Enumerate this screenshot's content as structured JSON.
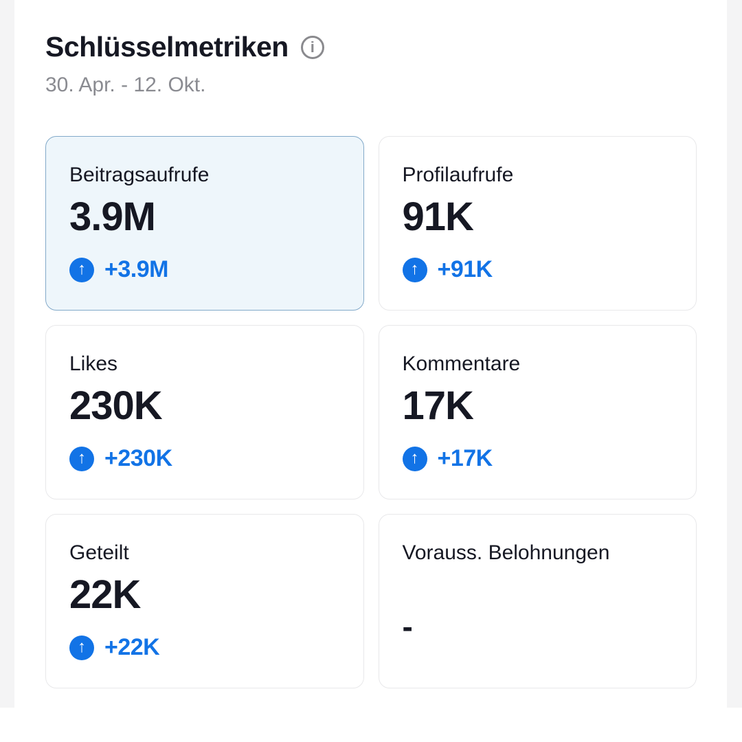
{
  "header": {
    "title": "Schlüsselmetriken",
    "info_icon": "info-circle-icon",
    "date_range": "30. Apr. - 12. Okt."
  },
  "colors": {
    "accent_blue": "#1273E6",
    "text_primary": "#161823",
    "text_secondary": "#8A8B91",
    "card_border": "#E8E8EA",
    "selected_card_bg": "#EEF6FB",
    "selected_card_border": "#82A9C9",
    "side_strip_gray": "#F4F4F5"
  },
  "icons": {
    "up_arrow": "↑",
    "info_letter": "i"
  },
  "metrics": [
    {
      "label": "Beitragsaufrufe",
      "value": "3.9M",
      "change": "+3.9M",
      "selected": true
    },
    {
      "label": "Profilaufrufe",
      "value": "91K",
      "change": "+91K",
      "selected": false
    },
    {
      "label": "Likes",
      "value": "230K",
      "change": "+230K",
      "selected": false
    },
    {
      "label": "Kommentare",
      "value": "17K",
      "change": "+17K",
      "selected": false
    },
    {
      "label": "Geteilt",
      "value": "22K",
      "change": "+22K",
      "selected": false
    },
    {
      "label": "Vorauss. Belohnungen",
      "value": "-",
      "change": null,
      "selected": false
    }
  ]
}
